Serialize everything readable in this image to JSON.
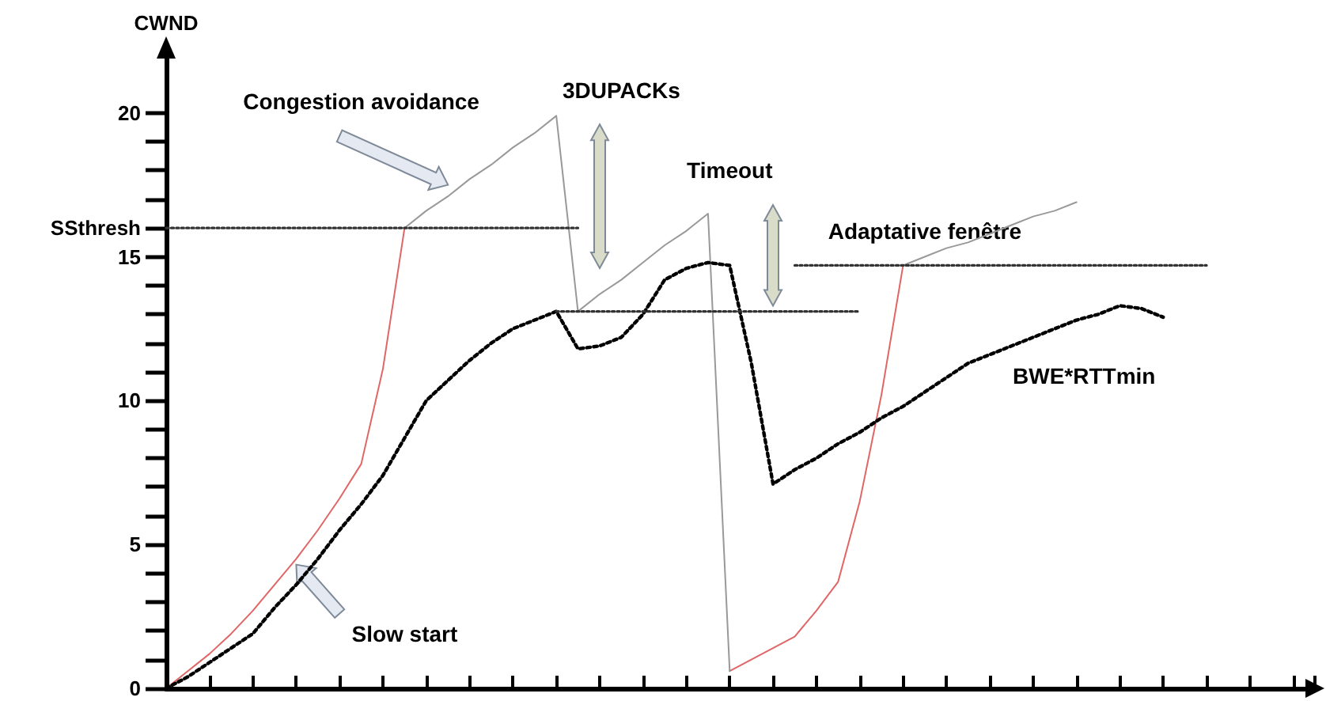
{
  "chart_data": {
    "type": "line",
    "ylabel": "CWND",
    "annotations": [
      "Congestion avoidance",
      "3DUPACKs",
      "Timeout",
      "Adaptative fenêtre",
      "Slow start"
    ],
    "categories": [
      null,
      null,
      null,
      null,
      null,
      null,
      null,
      null,
      null,
      null,
      null,
      null,
      null,
      null,
      null,
      null,
      null,
      null,
      null,
      null,
      null,
      null,
      null,
      null,
      null,
      null,
      null,
      null,
      null,
      null,
      null,
      null,
      null,
      null,
      null,
      null,
      null,
      null,
      null,
      null,
      null,
      null,
      null,
      null,
      null,
      null,
      null,
      null,
      null,
      null,
      null,
      null,
      null,
      null
    ],
    "ylim": [
      0,
      22
    ],
    "yticks": [
      0,
      {
        "value": 1,
        "label": null
      },
      {
        "value": 2,
        "label": null
      },
      {
        "value": 3,
        "label": null
      },
      {
        "value": 4,
        "label": null
      },
      5,
      {
        "value": 6,
        "label": null
      },
      {
        "value": 7,
        "label": null
      },
      {
        "value": 8,
        "label": null
      },
      {
        "value": 9,
        "label": null
      },
      10,
      {
        "value": 11,
        "label": null
      },
      {
        "value": 12,
        "label": null
      },
      {
        "value": 13,
        "label": null
      },
      {
        "value": 14,
        "label": null
      },
      15,
      {
        "value": 16,
        "label": "SSthresh"
      },
      {
        "value": 17,
        "label": null
      },
      {
        "value": 18,
        "label": null
      },
      {
        "value": 19,
        "label": null
      },
      20
    ],
    "tick_labels": "y",
    "grid": false,
    "legend": false,
    "marker": "none",
    "series": [
      {
        "color": "#e06666",
        "line_style": "solid",
        "values": [
          0,
          0.6,
          1.2,
          1.9,
          2.7,
          3.6,
          4.5,
          5.5,
          6.6,
          7.8,
          11.1,
          16,
          null,
          null,
          null,
          null,
          null,
          null,
          null,
          null,
          null,
          null,
          null,
          null,
          null,
          null,
          null,
          null,
          null,
          null,
          null,
          null,
          null,
          null,
          null,
          null,
          null,
          null,
          null,
          null,
          null,
          null,
          null,
          null,
          null,
          null,
          null,
          null,
          null,
          null,
          null,
          null,
          null,
          null
        ]
      },
      {
        "color": "#e06666",
        "line_style": "solid",
        "values": [
          null,
          null,
          null,
          null,
          null,
          null,
          null,
          null,
          null,
          null,
          null,
          null,
          null,
          null,
          null,
          null,
          null,
          null,
          null,
          null,
          null,
          null,
          null,
          null,
          null,
          null,
          0.6,
          1.0,
          1.4,
          1.8,
          2.7,
          3.7,
          6.5,
          10.2,
          14.7,
          null,
          null,
          null,
          null,
          null,
          null,
          null,
          null,
          null,
          null,
          null,
          null,
          null,
          null,
          null,
          null,
          null,
          null,
          null
        ]
      },
      {
        "color": "#999999",
        "line_style": "solid",
        "values": [
          null,
          null,
          null,
          null,
          null,
          null,
          null,
          null,
          null,
          null,
          null,
          16,
          16.6,
          17.1,
          17.7,
          18.2,
          18.8,
          19.3,
          19.9,
          13.1,
          13.7,
          14.2,
          14.8,
          15.4,
          15.9,
          16.5,
          0.6,
          null,
          null,
          null,
          null,
          null,
          null,
          null,
          null,
          null,
          null,
          null,
          null,
          null,
          null,
          null,
          null,
          null,
          null,
          null,
          null,
          null,
          null,
          null,
          null,
          null,
          null,
          null
        ]
      },
      {
        "color": "#999999",
        "line_style": "solid",
        "values": [
          null,
          null,
          null,
          null,
          null,
          null,
          null,
          null,
          null,
          null,
          null,
          null,
          null,
          null,
          null,
          null,
          null,
          null,
          null,
          null,
          null,
          null,
          null,
          null,
          null,
          null,
          null,
          null,
          null,
          null,
          null,
          null,
          null,
          null,
          14.7,
          15.0,
          15.3,
          15.5,
          15.8,
          16.1,
          16.4,
          16.6,
          16.9,
          null,
          null,
          null,
          null,
          null,
          null,
          null,
          null,
          null,
          null,
          null
        ]
      },
      {
        "name": "BWE*RTTmin",
        "color": "#000000",
        "line_style": "dotted",
        "values": [
          0,
          0.4,
          0.9,
          1.4,
          1.9,
          2.8,
          3.6,
          4.5,
          5.5,
          6.4,
          7.4,
          8.7,
          10,
          10.7,
          11.4,
          12.0,
          12.5,
          12.8,
          13.1,
          11.8,
          11.9,
          12.2,
          13.0,
          14.2,
          14.6,
          14.8,
          14.7,
          11.3,
          7.1,
          7.6,
          8.0,
          8.5,
          8.9,
          9.4,
          9.8,
          10.3,
          10.8,
          11.3,
          11.6,
          11.9,
          12.2,
          12.5,
          12.8,
          13.0,
          13.3,
          13.2,
          12.9,
          null,
          null,
          null,
          null,
          null,
          null,
          null
        ]
      },
      {
        "color": "#333333",
        "line_style": "dotted",
        "values": [
          16,
          16,
          16,
          16,
          16,
          16,
          16,
          16,
          16,
          16,
          16,
          16,
          16,
          16,
          16,
          16,
          16,
          16,
          16,
          16,
          null,
          null,
          null,
          null,
          null,
          null,
          null,
          null,
          null,
          null,
          null,
          null,
          null,
          null,
          null,
          null,
          null,
          null,
          null,
          null,
          null,
          null,
          null,
          null,
          null,
          null,
          null,
          null,
          null,
          null,
          null,
          null,
          null,
          null
        ]
      },
      {
        "color": "#333333",
        "line_style": "dotted",
        "values": [
          null,
          null,
          null,
          null,
          null,
          null,
          null,
          null,
          null,
          null,
          null,
          null,
          null,
          null,
          null,
          null,
          null,
          null,
          13.1,
          13.1,
          13.1,
          13.1,
          13.1,
          13.1,
          13.1,
          13.1,
          13.1,
          13.1,
          13.1,
          13.1,
          13.1,
          13.1,
          13.1,
          null,
          null,
          null,
          null,
          null,
          null,
          null,
          null,
          null,
          null,
          null,
          null,
          null,
          null,
          null,
          null,
          null,
          null,
          null,
          null,
          null
        ]
      },
      {
        "color": "#333333",
        "line_style": "dotted",
        "values": [
          null,
          null,
          null,
          null,
          null,
          null,
          null,
          null,
          null,
          null,
          null,
          null,
          null,
          null,
          null,
          null,
          null,
          null,
          null,
          null,
          null,
          null,
          null,
          null,
          null,
          null,
          null,
          null,
          null,
          14.7,
          14.7,
          14.7,
          14.7,
          14.7,
          14.7,
          14.7,
          14.7,
          14.7,
          14.7,
          14.7,
          14.7,
          14.7,
          14.7,
          14.7,
          14.7,
          14.7,
          14.7,
          14.7,
          14.7,
          null,
          null,
          null,
          null,
          null
        ]
      }
    ]
  }
}
